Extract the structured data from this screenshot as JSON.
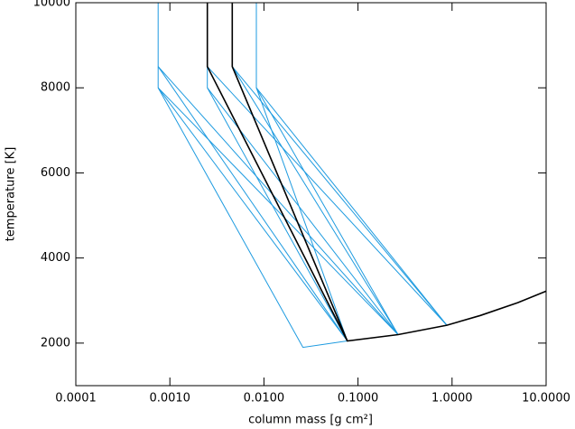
{
  "chart_data": {
    "type": "line",
    "xlabel": "column mass [g cm²]",
    "ylabel": "temperature [K]",
    "xscale": "log",
    "xlim": [
      0.0001,
      10
    ],
    "xticks": [
      {
        "value": 0.0001,
        "label": "0.0001"
      },
      {
        "value": 0.001,
        "label": "0.0010"
      },
      {
        "value": 0.01,
        "label": "0.0100"
      },
      {
        "value": 0.1,
        "label": "0.1000"
      },
      {
        "value": 1,
        "label": "1.0000"
      },
      {
        "value": 10,
        "label": "10.0000"
      }
    ],
    "ylim": [
      1000,
      10000
    ],
    "yticks": [
      2000,
      4000,
      6000,
      8000,
      10000
    ],
    "series": [
      {
        "color": "#1e9be0",
        "x": [
          0.00075,
          0.00075,
          0.00075,
          0.026,
          0.077
        ],
        "values": [
          10000,
          8500,
          8000,
          1900,
          2050
        ]
      },
      {
        "color": "#1e9be0",
        "x": [
          0.00075,
          0.077
        ],
        "values": [
          8500,
          2050
        ]
      },
      {
        "color": "#1e9be0",
        "x": [
          0.00075,
          0.267
        ],
        "values": [
          8500,
          2200
        ]
      },
      {
        "color": "#1e9be0",
        "x": [
          0.00075,
          0.077
        ],
        "values": [
          8000,
          2050
        ]
      },
      {
        "color": "#1e9be0",
        "x": [
          0.00075,
          0.267
        ],
        "values": [
          8000,
          2200
        ]
      },
      {
        "color": "#1e9be0",
        "x": [
          0.0025,
          0.0025,
          0.267
        ],
        "values": [
          8500,
          8000,
          2200
        ]
      },
      {
        "color": "#1e9be0",
        "x": [
          0.0025,
          0.88
        ],
        "values": [
          8500,
          2420
        ]
      },
      {
        "color": "#1e9be0",
        "x": [
          0.0025,
          0.077
        ],
        "values": [
          8000,
          2050
        ]
      },
      {
        "color": "#1e9be0",
        "x": [
          0.0046,
          0.267
        ],
        "values": [
          8500,
          2200
        ]
      },
      {
        "color": "#1e9be0",
        "x": [
          0.0046,
          0.88
        ],
        "values": [
          8500,
          2420
        ]
      },
      {
        "color": "#1e9be0",
        "x": [
          0.0083,
          0.0083,
          0.0083,
          0.267
        ],
        "values": [
          10000,
          8500,
          8000,
          2200
        ]
      },
      {
        "color": "#1e9be0",
        "x": [
          0.0083,
          0.88
        ],
        "values": [
          8000,
          2420
        ]
      },
      {
        "color": "#1e9be0",
        "x": [
          0.0083,
          0.077
        ],
        "values": [
          8000,
          2050
        ]
      },
      {
        "color": "#1e9be0",
        "x": [
          0.0046,
          0.077
        ],
        "values": [
          8500,
          2050
        ]
      },
      {
        "color": "#000000",
        "x": [
          0.0025,
          0.0025,
          0.077,
          0.267,
          0.88,
          2,
          5,
          10
        ],
        "values": [
          10000,
          8500,
          2050,
          2200,
          2420,
          2650,
          2950,
          3220
        ]
      },
      {
        "color": "#000000",
        "x": [
          0.0046,
          0.0046,
          0.077
        ],
        "values": [
          10000,
          8500,
          2050
        ]
      }
    ]
  }
}
